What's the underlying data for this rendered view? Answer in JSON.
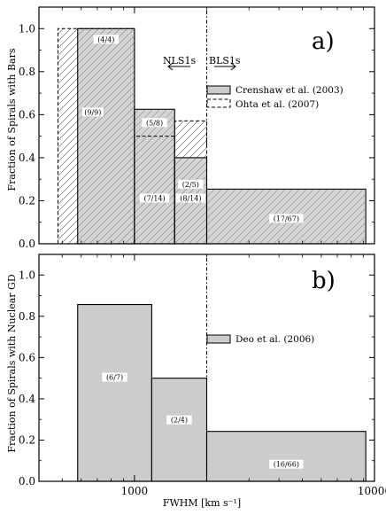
{
  "chart_data": [
    {
      "type": "histogram",
      "panel_label": "a)",
      "ylabel": "Fraction of Spirals with Bars",
      "ylim": [
        0,
        1.1
      ],
      "yticks": [
        "0.0",
        "0.2",
        "0.4",
        "0.6",
        "0.8",
        "1.0"
      ],
      "x_scale": "log",
      "xlim": [
        400,
        10000
      ],
      "divider_x": 2000,
      "region_labels": [
        {
          "text": "NLS1s",
          "arrow": "left"
        },
        {
          "text": "BLS1s",
          "arrow": "right"
        }
      ],
      "series": [
        {
          "name": "Crenshaw et al. (2003)",
          "style": "solid-gray",
          "bins": [
            {
              "x0": 580,
              "x1": 1000,
              "value": 1.0,
              "label": "(4/4)"
            },
            {
              "x0": 1000,
              "x1": 1470,
              "value": 0.625,
              "label": "(5/8)"
            },
            {
              "x0": 1470,
              "x1": 2000,
              "value": 0.4,
              "label": "(2/5)"
            },
            {
              "x0": 2000,
              "x1": 9200,
              "value": 0.254,
              "label": "(17/67)"
            }
          ]
        },
        {
          "name": "Ohta et al. (2007)",
          "style": "dashed-hatched",
          "bins": [
            {
              "x0": 480,
              "x1": 1000,
              "value": 1.0,
              "label": "(9/9)"
            },
            {
              "x0": 1000,
              "x1": 1470,
              "value": 0.5,
              "label": "(7/14)"
            },
            {
              "x0": 1470,
              "x1": 2000,
              "value": 0.571,
              "label": "(8/14)"
            }
          ]
        }
      ]
    },
    {
      "type": "histogram",
      "panel_label": "b)",
      "ylabel": "Fraction of Spirals with Nuclear GD",
      "xlabel": "FWHM [km s⁻¹]",
      "ylim": [
        0,
        1.1
      ],
      "yticks": [
        "0.0",
        "0.2",
        "0.4",
        "0.6",
        "0.8",
        "1.0"
      ],
      "xticks": [
        "1000",
        "10000"
      ],
      "x_scale": "log",
      "xlim": [
        400,
        10000
      ],
      "divider_x": 2000,
      "series": [
        {
          "name": "Deo et al. (2006)",
          "style": "solid-gray",
          "bins": [
            {
              "x0": 580,
              "x1": 1180,
              "value": 0.857,
              "label": "(6/7)"
            },
            {
              "x0": 1180,
              "x1": 2000,
              "value": 0.5,
              "label": "(2/4)"
            },
            {
              "x0": 2000,
              "x1": 9200,
              "value": 0.242,
              "label": "(16/66)"
            }
          ]
        }
      ]
    }
  ],
  "colors": {
    "bar_fill": "#cccccc",
    "edge": "#000000",
    "hatch": "#555555"
  }
}
